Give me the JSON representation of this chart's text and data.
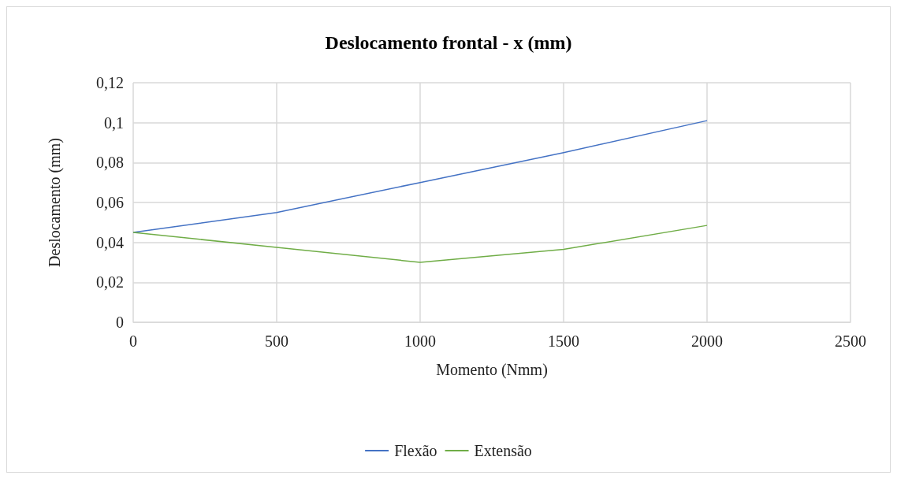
{
  "chart_data": {
    "type": "line",
    "title": "Deslocamento frontal - x (mm)",
    "xlabel": "Momento (Nmm)",
    "ylabel": "Deslocamento (mm)",
    "x": [
      0,
      500,
      1000,
      1500,
      2000
    ],
    "series": [
      {
        "name": "Flexão",
        "color": "#4472c4",
        "values": [
          0.045,
          0.055,
          0.07,
          0.085,
          0.101
        ]
      },
      {
        "name": "Extensão",
        "color": "#70ad47",
        "values": [
          0.045,
          0.0375,
          0.03,
          0.0365,
          0.0485
        ]
      }
    ],
    "xlim": [
      0,
      2500
    ],
    "xticks": [
      0,
      500,
      1000,
      1500,
      2000,
      2500
    ],
    "ylim": [
      0,
      0.12
    ],
    "yticks": [
      0,
      {
        "value": 0.02,
        "label": "0,02"
      },
      {
        "value": 0.04,
        "label": "0,04"
      },
      {
        "value": 0.06,
        "label": "0,06"
      },
      {
        "value": 0.08,
        "label": "0,08"
      },
      {
        "value": 0.1,
        "label": "0,1"
      },
      {
        "value": 0.12,
        "label": "0,12"
      }
    ],
    "grid": true,
    "legend": "bottom",
    "marker": "none",
    "line_style": "solid"
  }
}
